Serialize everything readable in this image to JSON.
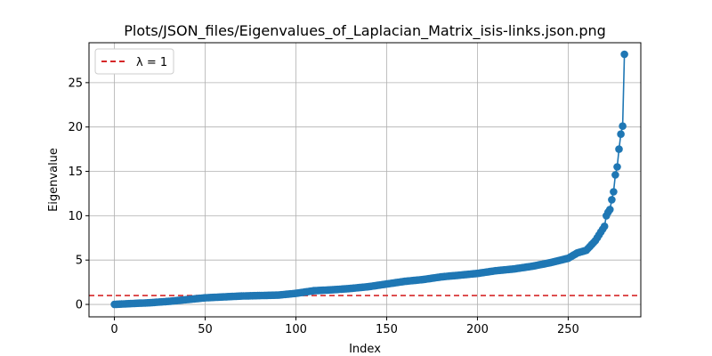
{
  "chart_data": {
    "type": "line",
    "title": "Plots/JSON_files/Eigenvalues_of_Laplacian_Matrix_isis-links.json.png",
    "xlabel": "Index",
    "ylabel": "Eigenvalue",
    "xlim": [
      -14,
      290
    ],
    "ylim": [
      -1.4,
      29.5
    ],
    "xticks": [
      0,
      50,
      100,
      150,
      200,
      250
    ],
    "yticks": [
      0,
      5,
      10,
      15,
      20,
      25
    ],
    "grid": true,
    "legend_position": "top-left",
    "reference_line": {
      "label": "λ = 1",
      "y": 1,
      "color": "#d62728",
      "style": "dashed"
    },
    "series": [
      {
        "color": "#1f77b4",
        "marker": "circle",
        "knots": [
          [
            0,
            0
          ],
          [
            10,
            0.1
          ],
          [
            20,
            0.2
          ],
          [
            30,
            0.35
          ],
          [
            40,
            0.55
          ],
          [
            50,
            0.75
          ],
          [
            60,
            0.85
          ],
          [
            70,
            0.95
          ],
          [
            80,
            1.0
          ],
          [
            90,
            1.05
          ],
          [
            100,
            1.25
          ],
          [
            110,
            1.55
          ],
          [
            120,
            1.65
          ],
          [
            130,
            1.8
          ],
          [
            140,
            2.0
          ],
          [
            150,
            2.3
          ],
          [
            160,
            2.6
          ],
          [
            170,
            2.8
          ],
          [
            180,
            3.1
          ],
          [
            190,
            3.3
          ],
          [
            200,
            3.5
          ],
          [
            210,
            3.8
          ],
          [
            220,
            4.0
          ],
          [
            230,
            4.3
          ],
          [
            240,
            4.7
          ],
          [
            250,
            5.2
          ],
          [
            255,
            5.8
          ],
          [
            260,
            6.1
          ],
          [
            265,
            7.2
          ],
          [
            270,
            8.8
          ],
          [
            271,
            10.0
          ],
          [
            272,
            10.4
          ],
          [
            273,
            10.7
          ],
          [
            274,
            11.8
          ],
          [
            275,
            12.7
          ],
          [
            276,
            14.6
          ],
          [
            277,
            15.5
          ],
          [
            278,
            17.5
          ],
          [
            279,
            19.2
          ],
          [
            280,
            20.1
          ],
          [
            281,
            28.2
          ]
        ],
        "count": 282
      }
    ]
  }
}
